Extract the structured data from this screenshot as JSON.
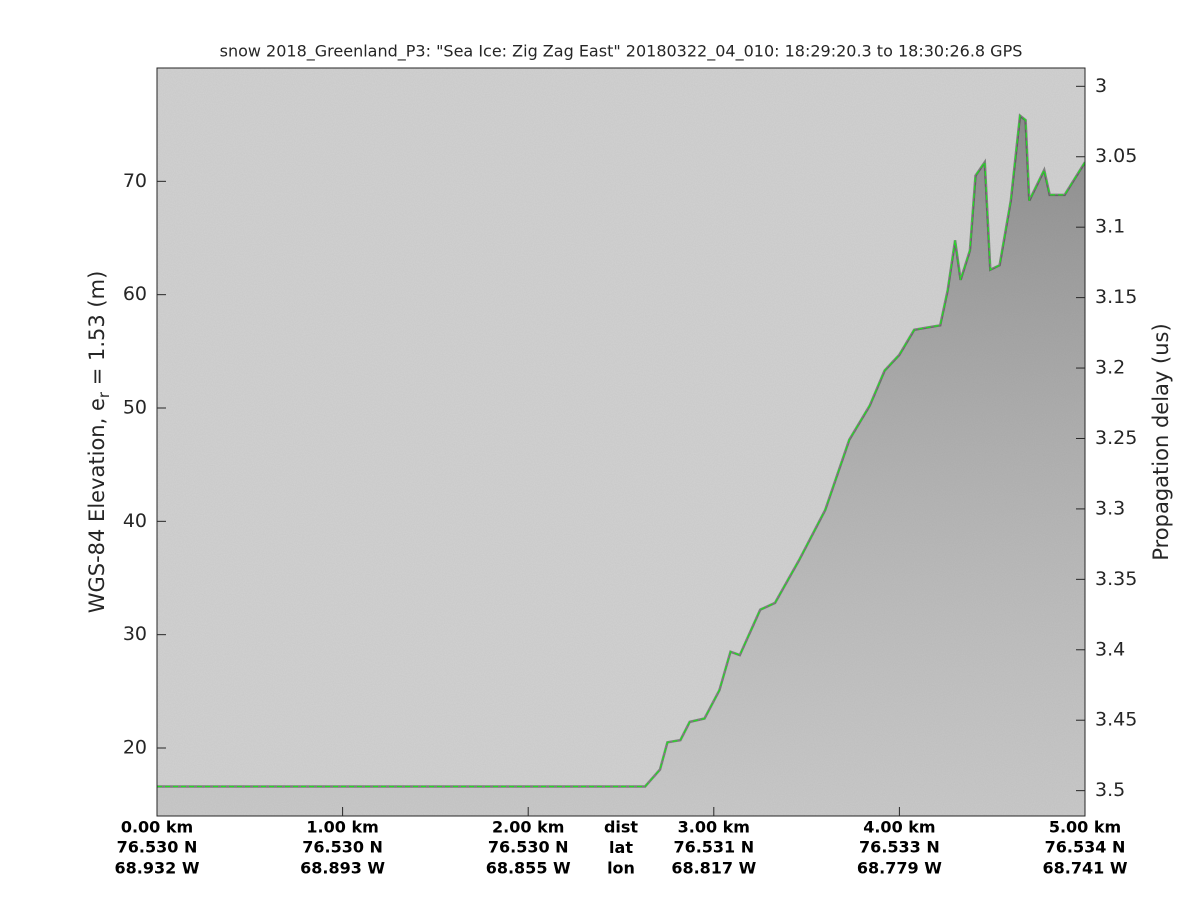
{
  "chart_data": {
    "type": "line",
    "title": "snow 2018_Greenland_P3: \"Sea Ice: Zig Zag East\"  20180322_04_010: 18:29:20.3 to 18:30:26.8 GPS",
    "ylabel": {
      "main": "WGS-84 Elevation, e",
      "subscript": "r",
      "rest": " = 1.53 (m)"
    },
    "y2label": "Propagation delay (us)",
    "row_labels": [
      "dist",
      "lat",
      "lon"
    ],
    "xlim": [
      0,
      5
    ],
    "xticks": [
      {
        "value": 0,
        "label": "0.00 km"
      },
      {
        "value": 1,
        "label": "1.00 km"
      },
      {
        "value": 2,
        "label": "2.00 km"
      },
      {
        "value": 3,
        "label": "3.00 km"
      },
      {
        "value": 4,
        "label": "4.00 km"
      },
      {
        "value": 5,
        "label": "5.00 km"
      }
    ],
    "lat_labels": [
      "76.530 N",
      "76.530 N",
      "76.530 N",
      "76.531 N",
      "76.533 N",
      "76.534 N"
    ],
    "lon_labels": [
      "68.932 W",
      "68.893 W",
      "68.855 W",
      "68.817 W",
      "68.779 W",
      "68.741 W"
    ],
    "ylim": [
      14,
      80
    ],
    "yticks": [
      20,
      30,
      40,
      50,
      60,
      70
    ],
    "y2lim": [
      3.518,
      2.987
    ],
    "y2ticks": [
      3,
      3.05,
      3.1,
      3.15,
      3.2,
      3.25,
      3.3,
      3.35,
      3.4,
      3.45,
      3.5
    ],
    "line_color": "#22dd22",
    "x": [
      0,
      2.63,
      2.71,
      2.75,
      2.82,
      2.87,
      2.95,
      3.03,
      3.09,
      3.14,
      3.25,
      3.33,
      3.46,
      3.6,
      3.73,
      3.84,
      3.92,
      4.0,
      4.08,
      4.22,
      4.26,
      4.3,
      4.33,
      4.38,
      4.41,
      4.46,
      4.49,
      4.54,
      4.6,
      4.65,
      4.68,
      4.7,
      4.78,
      4.81,
      4.89,
      5.0
    ],
    "values": [
      16.6,
      16.6,
      18.1,
      20.5,
      20.7,
      22.3,
      22.6,
      25.1,
      28.5,
      28.2,
      32.2,
      32.8,
      36.6,
      41.0,
      47.2,
      50.2,
      53.3,
      54.7,
      56.9,
      57.3,
      60.4,
      64.8,
      61.3,
      63.9,
      70.5,
      71.7,
      62.2,
      62.6,
      68.3,
      75.8,
      75.4,
      68.3,
      71.0,
      68.8,
      68.8,
      71.7
    ]
  }
}
